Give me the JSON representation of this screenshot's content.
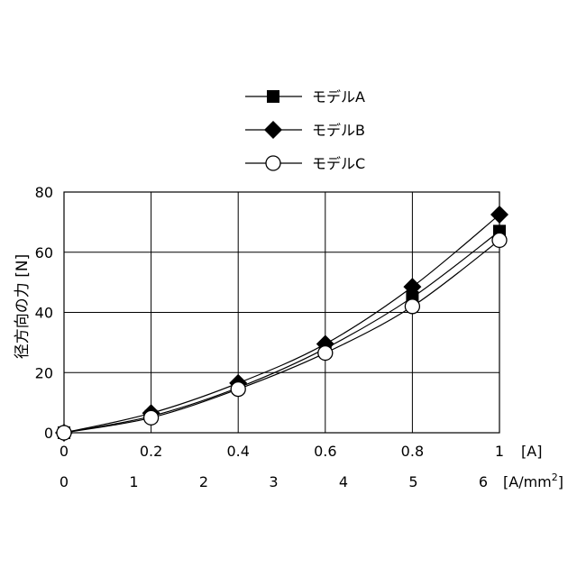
{
  "chart_data": {
    "type": "line",
    "ylabel": "径方向の力 [N]",
    "ylim": [
      0,
      80
    ],
    "yticks": [
      "0",
      "20",
      "40",
      "60",
      "80"
    ],
    "xlim": [
      0,
      1
    ],
    "x_primary": {
      "ticks": [
        "0",
        "0.2",
        "0.4",
        "0.6",
        "0.8",
        "1"
      ],
      "unit": "[A]"
    },
    "x_secondary": {
      "ticks": [
        "0",
        "1",
        "2",
        "3",
        "4",
        "5",
        "6"
      ],
      "unit_main": "[A/mm",
      "unit_sup": "2",
      "unit_close": "]"
    },
    "grid": true,
    "legend_position": "top",
    "x": [
      0,
      0.2,
      0.4,
      0.6,
      0.8,
      1.0
    ],
    "series": [
      {
        "name": "モデルA",
        "marker": "square",
        "values": [
          0,
          5.5,
          15,
          28,
          45,
          67
        ]
      },
      {
        "name": "モデルB",
        "marker": "diamond",
        "values": [
          0,
          6.5,
          16.5,
          29.5,
          48.5,
          72.5
        ]
      },
      {
        "name": "モデルC",
        "marker": "circle",
        "values": [
          0,
          5,
          14.5,
          26.5,
          42,
          64
        ]
      }
    ]
  }
}
